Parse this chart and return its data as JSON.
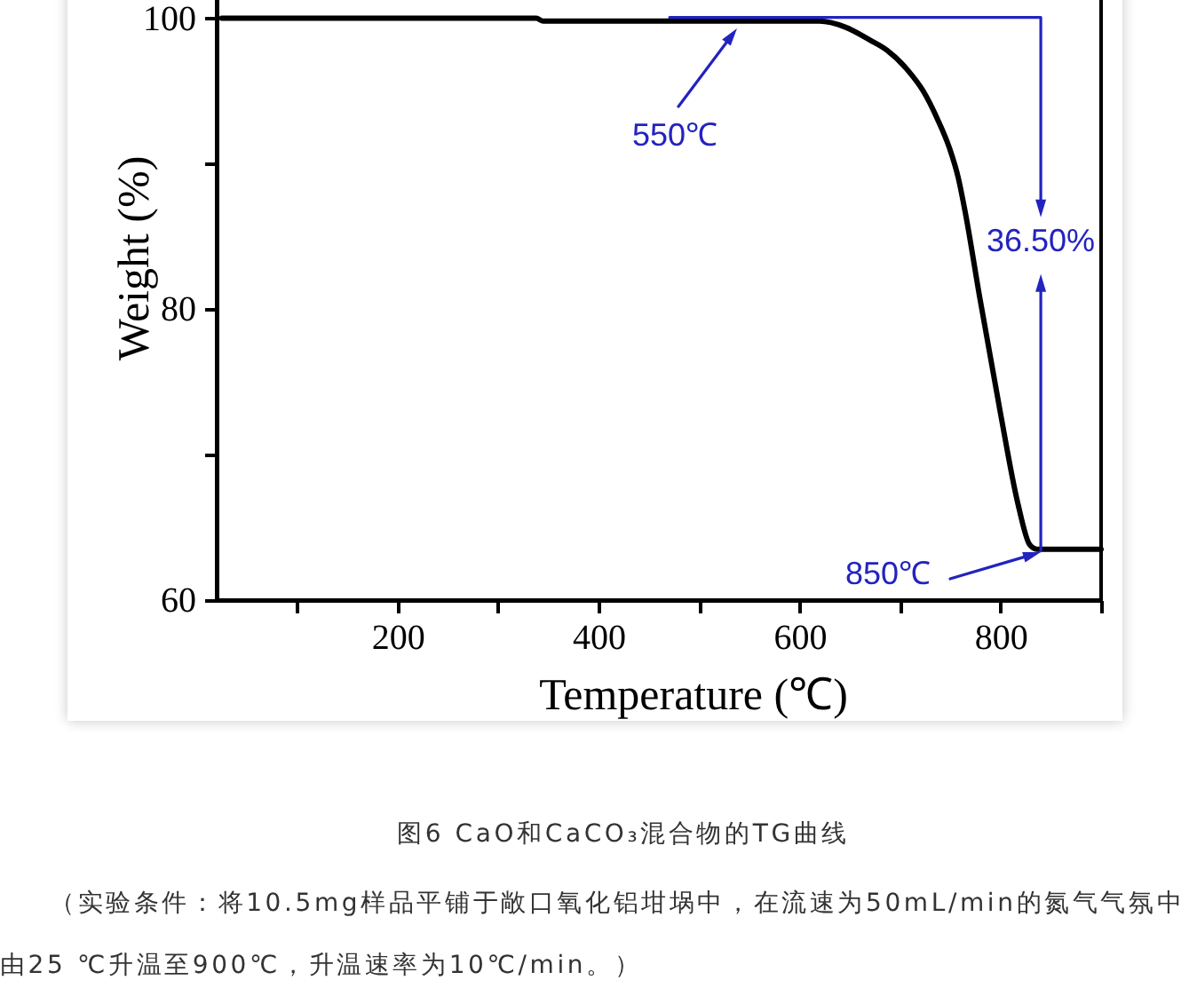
{
  "chart_data": {
    "type": "line",
    "title": "图6 CaO和CaCO₃混合物的TG曲线",
    "xlabel": "Temperature (℃)",
    "ylabel": "Weight (%)",
    "x": [
      25,
      100,
      200,
      300,
      338,
      345,
      400,
      500,
      600,
      620,
      645,
      670,
      687,
      708,
      723,
      737,
      749,
      758,
      765,
      779,
      800,
      817,
      829,
      836,
      850,
      900
    ],
    "values": [
      100,
      100,
      100,
      100,
      100,
      99.8,
      99.8,
      99.8,
      99.8,
      99.8,
      99.4,
      98.5,
      97.8,
      96.4,
      95.0,
      93.1,
      91.1,
      89.0,
      86.6,
      80.9,
      72.8,
      66.7,
      63.8,
      63.5,
      63.5,
      63.5
    ],
    "color": "#000000",
    "xlim": [
      20,
      900
    ],
    "ylim": [
      60,
      101.5
    ],
    "xticks": [
      {
        "value": 100,
        "label": null
      },
      200,
      {
        "value": 300,
        "label": null
      },
      400,
      {
        "value": 500,
        "label": null
      },
      600,
      {
        "value": 700,
        "label": null
      },
      800,
      {
        "value": 900,
        "label": null
      }
    ],
    "yticks": [
      60,
      {
        "value": 70,
        "label": null
      },
      80,
      {
        "value": 90,
        "label": null
      },
      100
    ],
    "annotations": [
      "550℃",
      "850℃",
      {
        "text": "36.50%",
        "x": 840,
        "y": 63.5
      },
      "（实验条件：将10.5mg样品平铺于敞口氧化铝坩埚中，在流速为50mL/min的氮气气氛中由25 ℃升温至900℃，升温速率为10℃/min。）"
    ]
  }
}
